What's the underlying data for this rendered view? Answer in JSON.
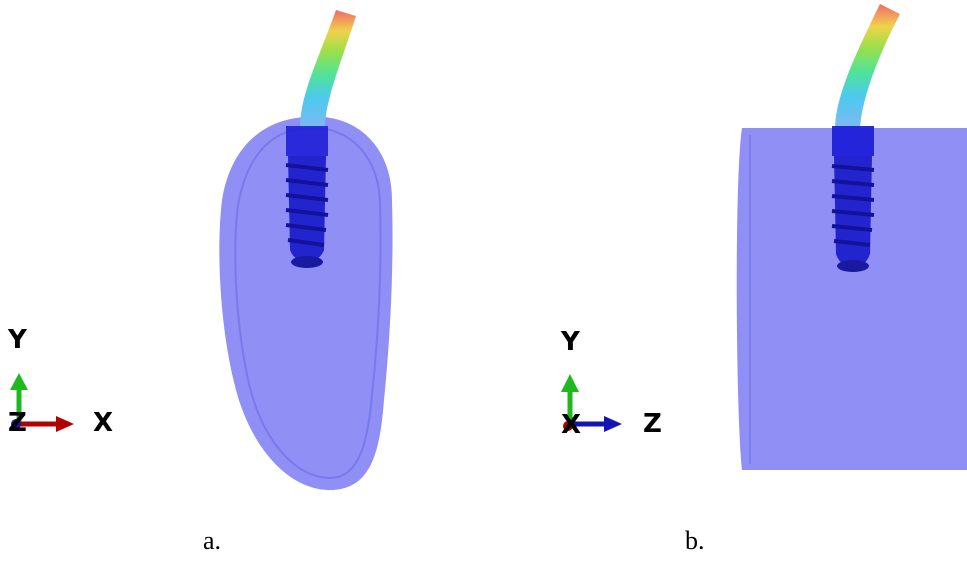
{
  "panel_a": {
    "caption": "a.",
    "axes": {
      "up": "Y",
      "right": "X",
      "out": "Z"
    }
  },
  "panel_b": {
    "caption": "b.",
    "axes": {
      "up": "Y",
      "right": "Z",
      "out": "X"
    }
  },
  "colors": {
    "bone": "#7b7bf5",
    "implant": "#1f1fd8",
    "axis_x": "#b00000",
    "axis_y": "#1fb81f",
    "axis_z": "#1414b4",
    "beam_gradient": [
      "#4dc9f0",
      "#4fe39a",
      "#9be04a",
      "#f0d24a",
      "#f06a6a"
    ]
  }
}
